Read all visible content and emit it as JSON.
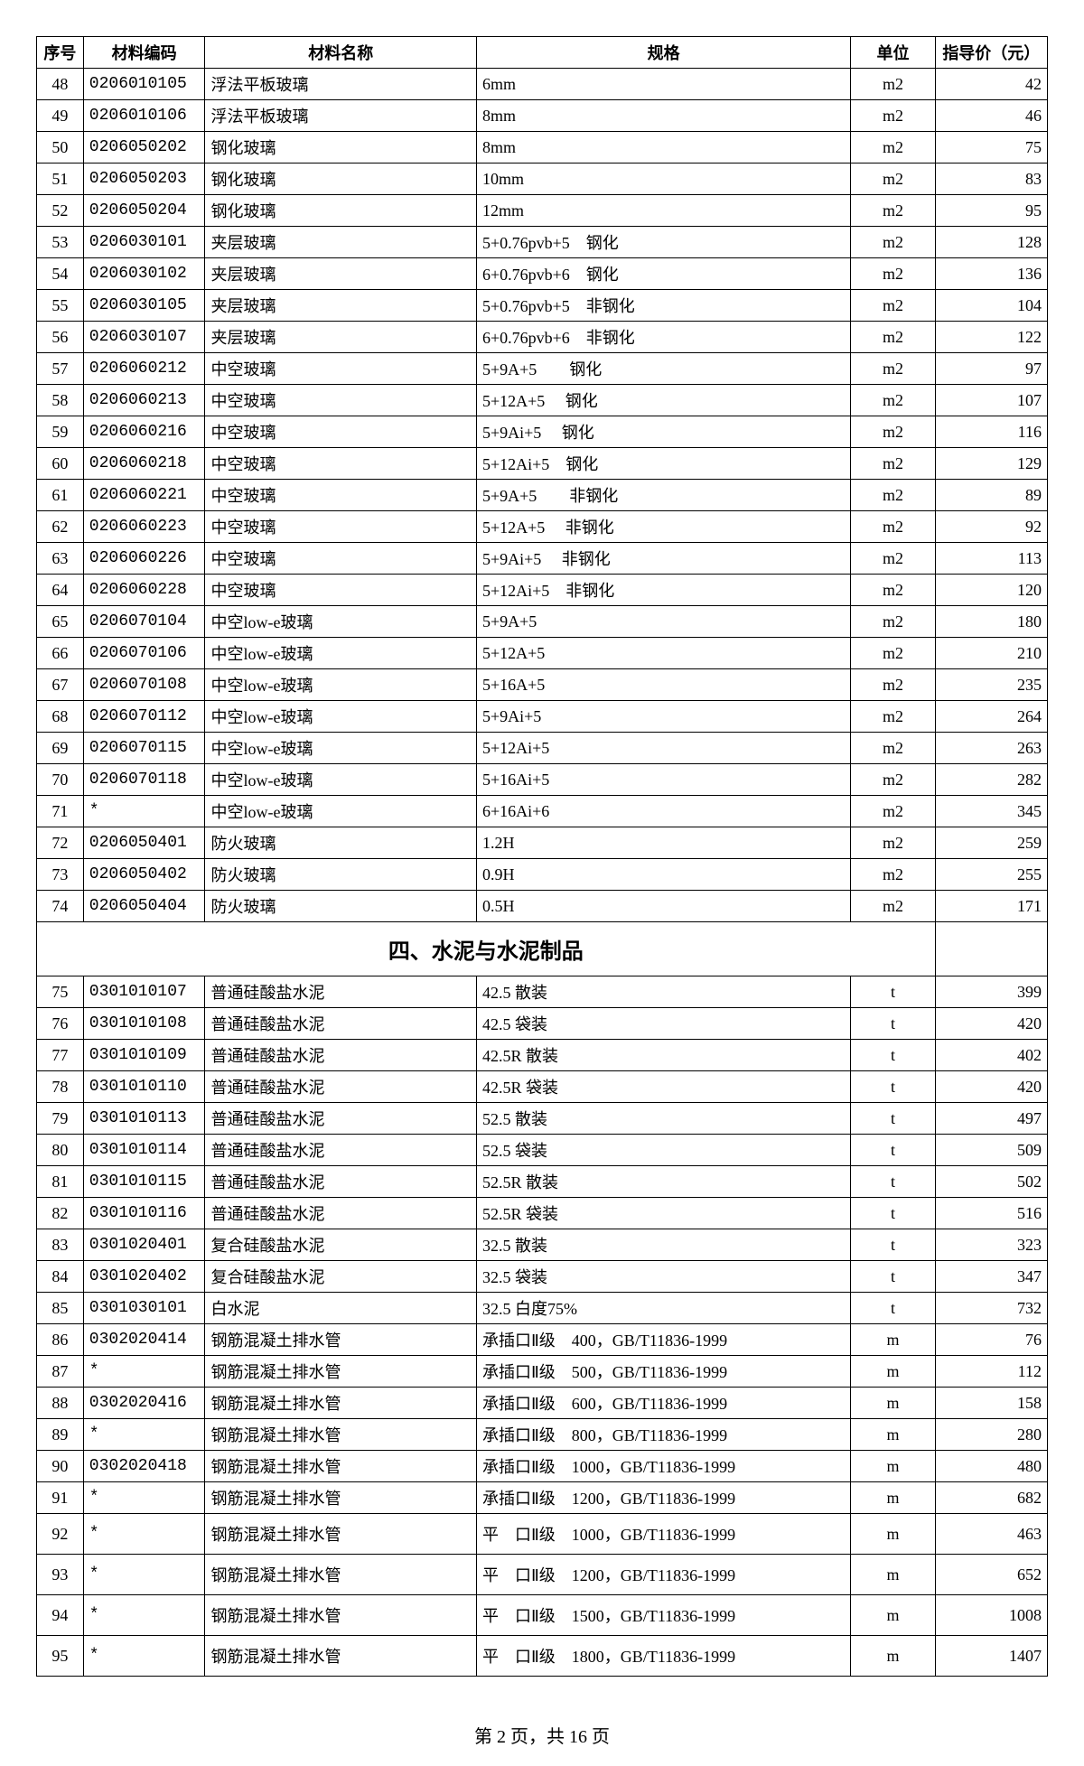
{
  "headers": {
    "seq": "序号",
    "code": "材料编码",
    "name": "材料名称",
    "spec": "规格",
    "unit": "单位",
    "price": "指导价（元）"
  },
  "section_title": "四、水泥与水泥制品",
  "footer": "第 2 页，共 16 页",
  "rows_a": [
    {
      "seq": "48",
      "code": "0206010105",
      "name": "浮法平板玻璃",
      "spec": "6mm",
      "unit": "m2",
      "price": "42"
    },
    {
      "seq": "49",
      "code": "0206010106",
      "name": "浮法平板玻璃",
      "spec": "8mm",
      "unit": "m2",
      "price": "46"
    },
    {
      "seq": "50",
      "code": "0206050202",
      "name": "钢化玻璃",
      "spec": "8mm",
      "unit": "m2",
      "price": "75"
    },
    {
      "seq": "51",
      "code": "0206050203",
      "name": "钢化玻璃",
      "spec": "10mm",
      "unit": "m2",
      "price": "83"
    },
    {
      "seq": "52",
      "code": "0206050204",
      "name": "钢化玻璃",
      "spec": "12mm",
      "unit": "m2",
      "price": "95"
    },
    {
      "seq": "53",
      "code": "0206030101",
      "name": "夹层玻璃",
      "spec": "5+0.76pvb+5　钢化",
      "unit": "m2",
      "price": "128"
    },
    {
      "seq": "54",
      "code": "0206030102",
      "name": "夹层玻璃",
      "spec": "6+0.76pvb+6　钢化",
      "unit": "m2",
      "price": "136"
    },
    {
      "seq": "55",
      "code": "0206030105",
      "name": "夹层玻璃",
      "spec": "5+0.76pvb+5　非钢化",
      "unit": "m2",
      "price": "104"
    },
    {
      "seq": "56",
      "code": "0206030107",
      "name": "夹层玻璃",
      "spec": "6+0.76pvb+6　非钢化",
      "unit": "m2",
      "price": "122"
    },
    {
      "seq": "57",
      "code": "0206060212",
      "name": "中空玻璃",
      "spec": "5+9A+5　　钢化",
      "unit": "m2",
      "price": "97"
    },
    {
      "seq": "58",
      "code": "0206060213",
      "name": "中空玻璃",
      "spec": "5+12A+5　 钢化",
      "unit": "m2",
      "price": "107"
    },
    {
      "seq": "59",
      "code": "0206060216",
      "name": "中空玻璃",
      "spec": "5+9Ai+5　 钢化",
      "unit": "m2",
      "price": "116"
    },
    {
      "seq": "60",
      "code": "0206060218",
      "name": "中空玻璃",
      "spec": "5+12Ai+5　钢化",
      "unit": "m2",
      "price": "129"
    },
    {
      "seq": "61",
      "code": "0206060221",
      "name": "中空玻璃",
      "spec": "5+9A+5　　非钢化",
      "unit": "m2",
      "price": "89"
    },
    {
      "seq": "62",
      "code": "0206060223",
      "name": "中空玻璃",
      "spec": "5+12A+5　 非钢化",
      "unit": "m2",
      "price": "92"
    },
    {
      "seq": "63",
      "code": "0206060226",
      "name": "中空玻璃",
      "spec": "5+9Ai+5　 非钢化",
      "unit": "m2",
      "price": "113"
    },
    {
      "seq": "64",
      "code": "0206060228",
      "name": "中空玻璃",
      "spec": "5+12Ai+5　非钢化",
      "unit": "m2",
      "price": "120"
    },
    {
      "seq": "65",
      "code": "0206070104",
      "name": "中空low-e玻璃",
      "spec": "5+9A+5",
      "unit": "m2",
      "price": "180"
    },
    {
      "seq": "66",
      "code": "0206070106",
      "name": "中空low-e玻璃",
      "spec": "5+12A+5",
      "unit": "m2",
      "price": "210"
    },
    {
      "seq": "67",
      "code": "0206070108",
      "name": "中空low-e玻璃",
      "spec": "5+16A+5",
      "unit": "m2",
      "price": "235"
    },
    {
      "seq": "68",
      "code": "0206070112",
      "name": "中空low-e玻璃",
      "spec": "5+9Ai+5",
      "unit": "m2",
      "price": "264"
    },
    {
      "seq": "69",
      "code": "0206070115",
      "name": "中空low-e玻璃",
      "spec": "5+12Ai+5",
      "unit": "m2",
      "price": "263"
    },
    {
      "seq": "70",
      "code": "0206070118",
      "name": "中空low-e玻璃",
      "spec": "5+16Ai+5",
      "unit": "m2",
      "price": "282"
    },
    {
      "seq": "71",
      "code": "*",
      "name": "中空low-e玻璃",
      "spec": "6+16Ai+6",
      "unit": "m2",
      "price": "345"
    },
    {
      "seq": "72",
      "code": "0206050401",
      "name": "防火玻璃",
      "spec": "1.2H",
      "unit": "m2",
      "price": "259"
    },
    {
      "seq": "73",
      "code": "0206050402",
      "name": "防火玻璃",
      "spec": "0.9H",
      "unit": "m2",
      "price": "255"
    },
    {
      "seq": "74",
      "code": "0206050404",
      "name": "防火玻璃",
      "spec": "0.5H",
      "unit": "m2",
      "price": "171"
    }
  ],
  "rows_b": [
    {
      "seq": "75",
      "code": "0301010107",
      "name": "普通硅酸盐水泥",
      "spec": "42.5 散装",
      "unit": "t",
      "price": "399"
    },
    {
      "seq": "76",
      "code": "0301010108",
      "name": "普通硅酸盐水泥",
      "spec": "42.5 袋装",
      "unit": "t",
      "price": "420"
    },
    {
      "seq": "77",
      "code": "0301010109",
      "name": "普通硅酸盐水泥",
      "spec": "42.5R 散装",
      "unit": "t",
      "price": "402"
    },
    {
      "seq": "78",
      "code": "0301010110",
      "name": "普通硅酸盐水泥",
      "spec": "42.5R 袋装",
      "unit": "t",
      "price": "420"
    },
    {
      "seq": "79",
      "code": "0301010113",
      "name": "普通硅酸盐水泥",
      "spec": "52.5 散装",
      "unit": "t",
      "price": "497"
    },
    {
      "seq": "80",
      "code": "0301010114",
      "name": "普通硅酸盐水泥",
      "spec": "52.5 袋装",
      "unit": "t",
      "price": "509"
    },
    {
      "seq": "81",
      "code": "0301010115",
      "name": "普通硅酸盐水泥",
      "spec": "52.5R 散装",
      "unit": "t",
      "price": "502"
    },
    {
      "seq": "82",
      "code": "0301010116",
      "name": "普通硅酸盐水泥",
      "spec": "52.5R 袋装",
      "unit": "t",
      "price": "516"
    },
    {
      "seq": "83",
      "code": "0301020401",
      "name": "复合硅酸盐水泥",
      "spec": "32.5 散装",
      "unit": "t",
      "price": "323"
    },
    {
      "seq": "84",
      "code": "0301020402",
      "name": "复合硅酸盐水泥",
      "spec": "32.5 袋装",
      "unit": "t",
      "price": "347"
    },
    {
      "seq": "85",
      "code": "0301030101",
      "name": "白水泥",
      "spec": "32.5 白度75%",
      "unit": "t",
      "price": "732"
    },
    {
      "seq": "86",
      "code": "0302020414",
      "name": "钢筋混凝土排水管",
      "spec": "承插口Ⅱ级　400，GB/T11836-1999",
      "unit": "m",
      "price": "76"
    },
    {
      "seq": "87",
      "code": "*",
      "name": "钢筋混凝土排水管",
      "spec": "承插口Ⅱ级　500，GB/T11836-1999",
      "unit": "m",
      "price": "112"
    },
    {
      "seq": "88",
      "code": "0302020416",
      "name": "钢筋混凝土排水管",
      "spec": "承插口Ⅱ级　600，GB/T11836-1999",
      "unit": "m",
      "price": "158"
    },
    {
      "seq": "89",
      "code": "*",
      "name": "钢筋混凝土排水管",
      "spec": "承插口Ⅱ级　800，GB/T11836-1999",
      "unit": "m",
      "price": "280"
    },
    {
      "seq": "90",
      "code": "0302020418",
      "name": "钢筋混凝土排水管",
      "spec": "承插口Ⅱ级　1000，GB/T11836-1999",
      "unit": "m",
      "price": "480"
    },
    {
      "seq": "91",
      "code": "*",
      "name": "钢筋混凝土排水管",
      "spec": "承插口Ⅱ级　1200，GB/T11836-1999",
      "unit": "m",
      "price": "682"
    },
    {
      "seq": "92",
      "code": "*",
      "name": "钢筋混凝土排水管",
      "spec": "平　口Ⅱ级　1000，GB/T11836-1999",
      "unit": "m",
      "price": "463",
      "tall": true
    },
    {
      "seq": "93",
      "code": "*",
      "name": "钢筋混凝土排水管",
      "spec": "平　口Ⅱ级　1200，GB/T11836-1999",
      "unit": "m",
      "price": "652",
      "tall": true
    },
    {
      "seq": "94",
      "code": "*",
      "name": "钢筋混凝土排水管",
      "spec": "平　口Ⅱ级　1500，GB/T11836-1999",
      "unit": "m",
      "price": "1008",
      "tall": true
    },
    {
      "seq": "95",
      "code": "*",
      "name": "钢筋混凝土排水管",
      "spec": "平　口Ⅱ级　1800，GB/T11836-1999",
      "unit": "m",
      "price": "1407",
      "tall": true
    }
  ]
}
